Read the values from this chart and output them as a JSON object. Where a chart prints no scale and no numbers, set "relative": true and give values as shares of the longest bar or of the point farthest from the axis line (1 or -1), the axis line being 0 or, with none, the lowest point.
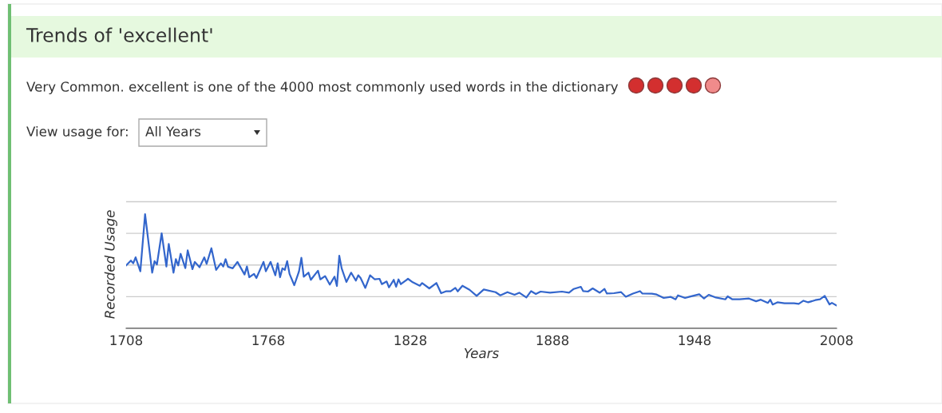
{
  "chart_data": {
    "type": "line",
    "title": "Trends of 'excellent'",
    "subtitle": "Very Common. excellent is one of the 4000 most commonly used words in the dictionary",
    "annotations": [
      "View usage for:",
      "All Years"
    ],
    "xlabel": "Years",
    "ylabel": "Recorded Usage",
    "relative": true,
    "grid": "y",
    "xlim": [
      1708,
      2008
    ],
    "xticks": [
      1708,
      1768,
      1828,
      1888,
      1948,
      2008
    ],
    "series": [
      {
        "color": "#3366cc",
        "x": [
          1708,
          1710,
          1711,
          1712,
          1714,
          1716,
          1719,
          1720,
          1721,
          1723,
          1725,
          1726,
          1728,
          1729,
          1730,
          1731,
          1733,
          1734,
          1736,
          1737,
          1739,
          1741,
          1742,
          1744,
          1746,
          1748,
          1749,
          1750,
          1751,
          1753,
          1755,
          1758,
          1759,
          1760,
          1762,
          1763,
          1766,
          1767,
          1769,
          1771,
          1772,
          1773,
          1774,
          1775,
          1776,
          1777,
          1779,
          1781,
          1782,
          1783,
          1785,
          1786,
          1789,
          1790,
          1792,
          1794,
          1796,
          1797,
          1798,
          1799,
          1801,
          1803,
          1805,
          1806,
          1807,
          1809,
          1811,
          1813,
          1815,
          1816,
          1818,
          1819,
          1821,
          1822,
          1823,
          1824,
          1827,
          1829,
          1832,
          1833,
          1836,
          1839,
          1841,
          1843,
          1845,
          1847,
          1848,
          1850,
          1853,
          1856,
          1859,
          1864,
          1866,
          1869,
          1872,
          1874,
          1877,
          1879,
          1881,
          1883,
          1887,
          1892,
          1895,
          1897,
          1900,
          1901,
          1903,
          1905,
          1908,
          1910,
          1911,
          1914,
          1917,
          1919,
          1922,
          1925,
          1926,
          1930,
          1932,
          1935,
          1938,
          1940,
          1941,
          1944,
          1946,
          1950,
          1952,
          1954,
          1957,
          1961,
          1962,
          1964,
          1967,
          1971,
          1974,
          1976,
          1979,
          1980,
          1981,
          1983,
          1986,
          1990,
          1992,
          1994,
          1996,
          1999,
          2001,
          2003,
          2005,
          2006,
          2008
        ],
        "values": [
          0.551,
          0.594,
          0.57,
          0.622,
          0.5,
          1,
          0.488,
          0.589,
          0.559,
          0.833,
          0.542,
          0.739,
          0.488,
          0.606,
          0.551,
          0.653,
          0.528,
          0.683,
          0.519,
          0.582,
          0.535,
          0.622,
          0.565,
          0.702,
          0.512,
          0.57,
          0.542,
          0.606,
          0.54,
          0.526,
          0.582,
          0.472,
          0.542,
          0.448,
          0.477,
          0.441,
          0.582,
          0.5,
          0.582,
          0.465,
          0.57,
          0.448,
          0.526,
          0.512,
          0.589,
          0.477,
          0.378,
          0.5,
          0.618,
          0.453,
          0.488,
          0.425,
          0.505,
          0.429,
          0.458,
          0.383,
          0.453,
          0.371,
          0.636,
          0.526,
          0.406,
          0.488,
          0.418,
          0.465,
          0.441,
          0.354,
          0.465,
          0.429,
          0.434,
          0.387,
          0.411,
          0.359,
          0.425,
          0.364,
          0.429,
          0.387,
          0.434,
          0.404,
          0.373,
          0.397,
          0.35,
          0.397,
          0.308,
          0.324,
          0.324,
          0.354,
          0.324,
          0.373,
          0.338,
          0.284,
          0.34,
          0.317,
          0.289,
          0.317,
          0.294,
          0.312,
          0.27,
          0.326,
          0.301,
          0.322,
          0.312,
          0.322,
          0.312,
          0.345,
          0.364,
          0.326,
          0.322,
          0.35,
          0.312,
          0.345,
          0.305,
          0.308,
          0.317,
          0.277,
          0.305,
          0.326,
          0.305,
          0.303,
          0.296,
          0.266,
          0.275,
          0.254,
          0.289,
          0.266,
          0.277,
          0.298,
          0.261,
          0.294,
          0.27,
          0.254,
          0.28,
          0.254,
          0.254,
          0.261,
          0.237,
          0.251,
          0.223,
          0.251,
          0.209,
          0.228,
          0.219,
          0.219,
          0.214,
          0.242,
          0.228,
          0.247,
          0.254,
          0.284,
          0.209,
          0.223,
          0.199
        ]
      }
    ]
  }
}
